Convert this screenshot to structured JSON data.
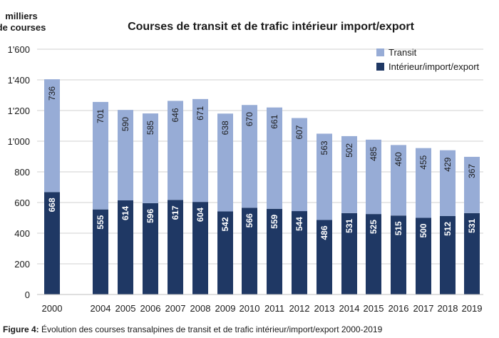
{
  "caption": {
    "label": "Figure 4:",
    "text": " Évolution des courses transalpines de transit et de trafic intérieur/import/export 2000-2019"
  },
  "chart_data": {
    "type": "bar",
    "stacked": true,
    "title": "Courses de transit et de trafic intérieur import/export",
    "ylabel_line1": "milliers",
    "ylabel_line2": "de courses",
    "xlabel": "",
    "ylim": [
      0,
      1600
    ],
    "yticks": [
      0,
      200,
      400,
      600,
      800,
      1000,
      1200,
      1400,
      1600
    ],
    "ytick_labels": [
      "0",
      "200",
      "400",
      "600",
      "800",
      "1'000",
      "1'200",
      "1'400",
      "1'600"
    ],
    "grid": true,
    "legend_position": "top-right",
    "categories": [
      "2000",
      "2004",
      "2005",
      "2006",
      "2007",
      "2008",
      "2009",
      "2010",
      "2011",
      "2012",
      "2013",
      "2014",
      "2015",
      "2016",
      "2017",
      "2018",
      "2019"
    ],
    "series": [
      {
        "name": "Intérieur/import/export",
        "color": "#1f3864",
        "values": [
          668,
          555,
          614,
          596,
          617,
          604,
          542,
          566,
          559,
          544,
          486,
          531,
          525,
          515,
          500,
          512,
          531
        ]
      },
      {
        "name": "Transit",
        "color": "#97acd6",
        "values": [
          736,
          701,
          590,
          585,
          646,
          671,
          638,
          670,
          661,
          607,
          563,
          502,
          485,
          460,
          455,
          429,
          367
        ]
      }
    ]
  }
}
